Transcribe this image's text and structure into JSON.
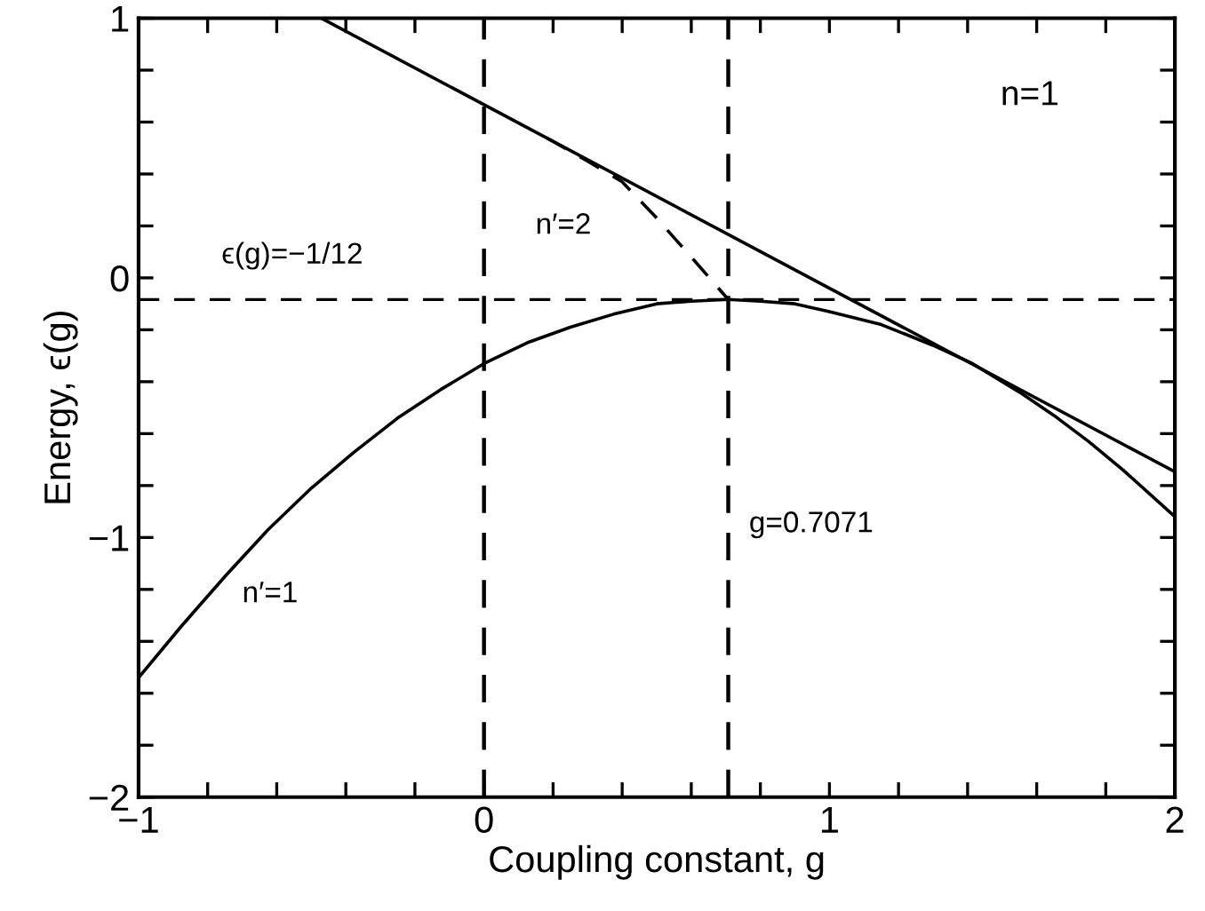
{
  "chart_data": {
    "type": "line",
    "xlabel": "Coupling constant, g",
    "ylabel": "Energy, ϵ(g)",
    "xlim": [
      -1,
      2
    ],
    "ylim": [
      -2,
      1
    ],
    "xticks": [
      -1,
      {
        "value": -0.8,
        "label": null
      },
      {
        "value": -0.6,
        "label": null
      },
      {
        "value": -0.4,
        "label": null
      },
      {
        "value": -0.2,
        "label": null
      },
      0,
      {
        "value": 0.2,
        "label": null
      },
      {
        "value": 0.4,
        "label": null
      },
      {
        "value": 0.6,
        "label": null
      },
      {
        "value": 0.8,
        "label": null
      },
      1,
      {
        "value": 1.2,
        "label": null
      },
      {
        "value": 1.4,
        "label": null
      },
      {
        "value": 1.6,
        "label": null
      },
      {
        "value": 1.8,
        "label": null
      },
      2
    ],
    "yticks": [
      -2,
      {
        "value": -1.8,
        "label": null
      },
      {
        "value": -1.6,
        "label": null
      },
      {
        "value": -1.4,
        "label": null
      },
      {
        "value": -1.2,
        "label": null
      },
      -1,
      {
        "value": -0.8,
        "label": null
      },
      {
        "value": -0.6,
        "label": null
      },
      {
        "value": -0.4,
        "label": null
      },
      {
        "value": -0.2,
        "label": null
      },
      0,
      {
        "value": 0.2,
        "label": null
      },
      {
        "value": 0.4,
        "label": null
      },
      {
        "value": 0.6,
        "label": null
      },
      {
        "value": 0.8,
        "label": null
      },
      1
    ],
    "grid": false,
    "legend": false,
    "series": [
      {
        "color": "#000000",
        "line_style": "solid",
        "x": [
          -1,
          -0.875,
          -0.75,
          -0.625,
          -0.5,
          -0.375,
          -0.25,
          -0.125,
          0,
          0.125,
          0.25,
          0.375,
          0.5,
          0.6,
          0.7071,
          0.8,
          0.9,
          1.0,
          1.15,
          1.3,
          1.414,
          1.55,
          1.65,
          1.75,
          1.85,
          2
        ],
        "values": [
          -1.54,
          -1.34,
          -1.15,
          -0.97,
          -0.81,
          -0.67,
          -0.54,
          -0.43,
          -0.33,
          -0.25,
          -0.19,
          -0.14,
          -0.1,
          -0.09,
          -0.083,
          -0.09,
          -0.1,
          -0.13,
          -0.18,
          -0.26,
          -0.33,
          -0.44,
          -0.53,
          -0.63,
          -0.74,
          -0.92
        ]
      },
      {
        "color": "#000000",
        "line_style": "solid",
        "x": [
          -0.471,
          2
        ],
        "values": [
          1,
          -0.747
        ]
      },
      {
        "color": "#000000",
        "line_style": "dashed",
        "x": [
          0.18,
          0.3,
          0.4,
          0.5,
          0.6,
          0.7071
        ],
        "values": [
          0.54,
          0.45,
          0.37,
          0.23,
          0.08,
          -0.083
        ]
      }
    ],
    "ref_lines": [
      {
        "axis": "y",
        "value": -0.083333,
        "color": "#000000",
        "line_style": "dashed"
      },
      {
        "axis": "x",
        "value": 0,
        "color": "#000000",
        "line_style": "dashed"
      },
      {
        "axis": "x",
        "value": 0.7071,
        "label": "g=0.7071",
        "color": "#000000",
        "line_style": "dashed"
      }
    ],
    "annotations": [
      "n=1",
      "n′=2",
      "n′=1",
      "ϵ(g)=−1/12"
    ]
  }
}
